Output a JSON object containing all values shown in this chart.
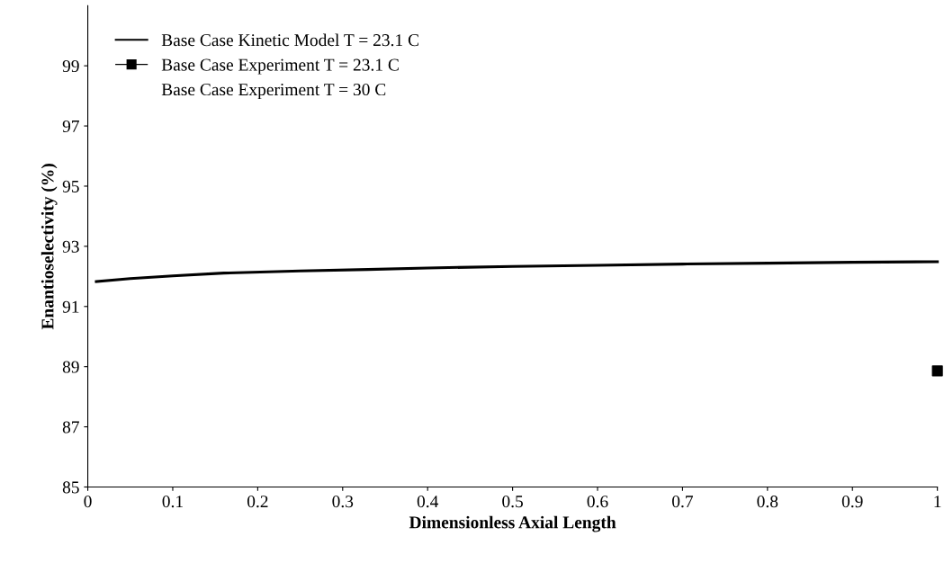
{
  "chart_data": {
    "type": "line",
    "xlabel": "Dimensionless Axial Length",
    "ylabel": "Enantioselectivity (%)",
    "xlim": [
      0,
      1
    ],
    "xticks": [
      0,
      0.1,
      0.2,
      0.3,
      0.4,
      0.5,
      0.6,
      0.7,
      0.8,
      0.9,
      1
    ],
    "ylim": [
      85,
      101
    ],
    "yticks": [
      85,
      87,
      89,
      91,
      93,
      95,
      97,
      99
    ],
    "grid": false,
    "legend": "top left",
    "series": [
      {
        "name": "Base Case Kinetic Model T = 23.1 C",
        "color": "#000000",
        "marker": "none",
        "line_style": "solid",
        "x": [
          0.01,
          0.05,
          0.1,
          0.16,
          0.25,
          0.33,
          0.4,
          0.5,
          0.6,
          0.7,
          0.8,
          0.9,
          1.0
        ],
        "values": [
          91.83,
          91.93,
          92.02,
          92.11,
          92.18,
          92.23,
          92.28,
          92.33,
          92.37,
          92.41,
          92.44,
          92.47,
          92.49
        ]
      },
      {
        "name": "Base Case Experiment T = 23.1 C",
        "type": "scatter",
        "color": "#000000",
        "marker": "square",
        "x": [
          1.0
        ],
        "values": [
          88.86
        ]
      },
      {
        "name": "Base Case Experiment T = 30 C",
        "type": "scatter",
        "color": "#000000",
        "marker": "none"
      }
    ]
  }
}
